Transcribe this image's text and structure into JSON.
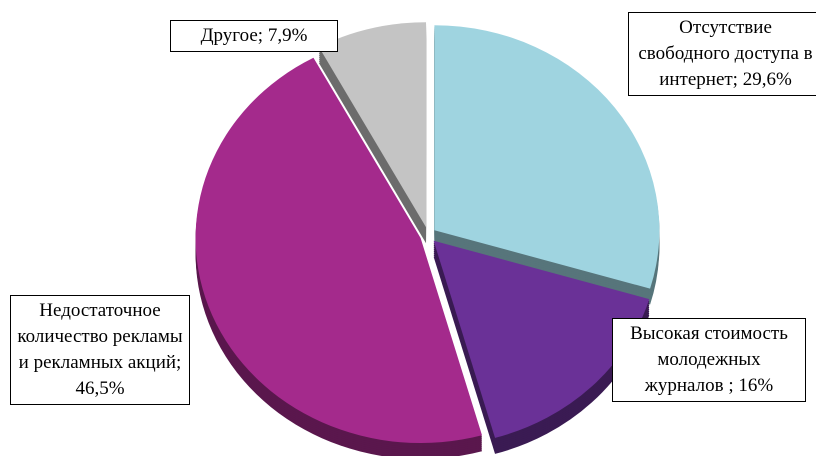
{
  "chart_data": {
    "type": "pie",
    "values": [
      29.6,
      16,
      46.5,
      7.9
    ],
    "value_labels": [
      "Отсутствие свободного доступа в интернет; 29,6%",
      "Высокая стоимость молодежных журналов ; 16%",
      "Недостаточное количество рекламы и рекламных акций; 46,5%",
      "Другое; 7,9%"
    ],
    "colors": [
      "#9fd4e0",
      "#6a3197",
      "#a42a8c",
      "#c4c4c4"
    ]
  }
}
